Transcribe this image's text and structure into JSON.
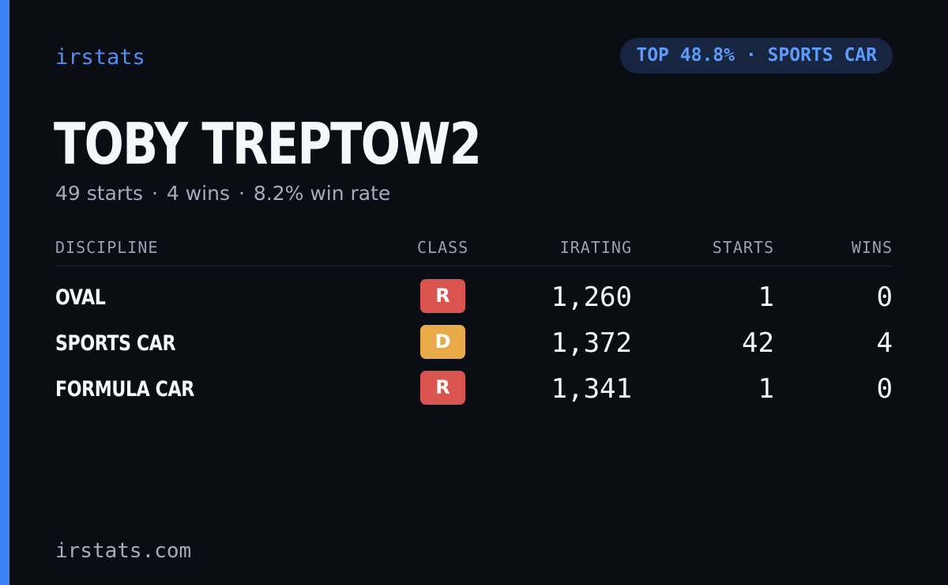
{
  "brand": "irstats",
  "badge": {
    "text": "TOP 48.8% · SPORTS CAR"
  },
  "driver": {
    "name": "TOBY TREPTOW2"
  },
  "summary": {
    "starts": "49 starts",
    "wins": "4 wins",
    "win_rate": "8.2% win rate",
    "separator": "·"
  },
  "table": {
    "headers": {
      "discipline": "DISCIPLINE",
      "class": "CLASS",
      "irating": "IRATING",
      "starts": "STARTS",
      "wins": "WINS"
    },
    "rows": [
      {
        "discipline": "OVAL",
        "class": "R",
        "class_color": "#d9534f",
        "irating": "1,260",
        "starts": "1",
        "wins": "0"
      },
      {
        "discipline": "SPORTS CAR",
        "class": "D",
        "class_color": "#e9ab4a",
        "irating": "1,372",
        "starts": "42",
        "wins": "4"
      },
      {
        "discipline": "FORMULA CAR",
        "class": "R",
        "class_color": "#d9534f",
        "irating": "1,341",
        "starts": "1",
        "wins": "0"
      }
    ]
  },
  "footer": "irstats.com",
  "colors": {
    "accent": "#3b82f6",
    "background": "#0a0d14",
    "class_r": "#d9534f",
    "class_d": "#e9ab4a"
  }
}
